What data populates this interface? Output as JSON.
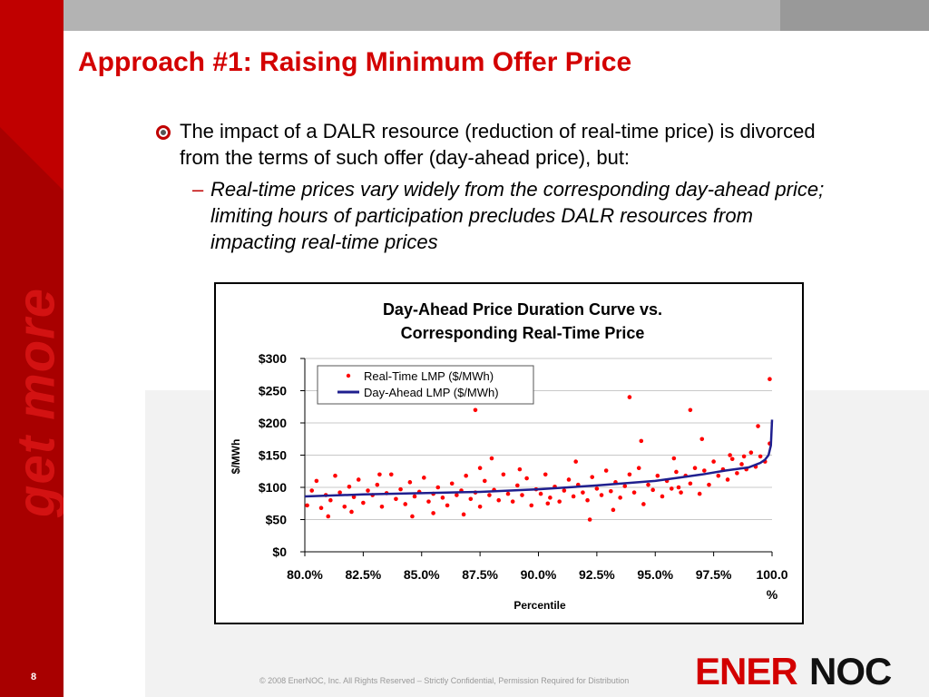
{
  "slide": {
    "title": "Approach #1: Raising Minimum Offer Price",
    "bullet": "The impact of a DALR resource (reduction of real-time price) is divorced from the terms of such offer (day-ahead price), but:",
    "sub_dash": "–",
    "sub_bullet": "Real-time prices vary widely from the corresponding day-ahead price; limiting hours of participation precludes DALR resources from impacting real-time prices",
    "page_number": "8",
    "footer": "© 2008 EnerNOC, Inc. All Rights Reserved – Strictly Confidential, Permission Required for Distribution",
    "brand_tagline": "get more",
    "logo": {
      "part1": "ENER",
      "part2": "NOC"
    }
  },
  "colors": {
    "accent_red": "#c00000",
    "title_red": "#d30000",
    "day_ahead_line": "#1f1f8f",
    "real_time_points": "#ff0000"
  },
  "chart_data": {
    "type": "scatter",
    "title_lines": [
      "Day-Ahead Price Duration Curve vs.",
      "Corresponding Real-Time Price"
    ],
    "xlabel": "Percentile",
    "ylabel": "$/MWh",
    "xlim": [
      80,
      100
    ],
    "ylim": [
      0,
      300
    ],
    "x_ticks": [
      80,
      82.5,
      85,
      87.5,
      90,
      92.5,
      95,
      97.5,
      100
    ],
    "x_tick_labels": [
      "80.0%",
      "82.5%",
      "85.0%",
      "87.5%",
      "90.0%",
      "92.5%",
      "95.0%",
      "97.5%",
      "100.0%"
    ],
    "y_ticks": [
      0,
      50,
      100,
      150,
      200,
      250,
      300
    ],
    "y_tick_labels": [
      "$0",
      "$50",
      "$100",
      "$150",
      "$200",
      "$250",
      "$300"
    ],
    "grid": "horizontal",
    "legend_position": "top-left",
    "series": [
      {
        "name": "Real-Time LMP ($/MWh)",
        "style": "points",
        "x": [
          80.1,
          80.3,
          80.5,
          80.7,
          80.9,
          81.1,
          81.3,
          81.5,
          81.7,
          81.9,
          82.1,
          82.3,
          82.5,
          82.7,
          82.9,
          83.1,
          83.3,
          83.5,
          83.7,
          83.9,
          84.1,
          84.3,
          84.5,
          84.7,
          84.9,
          85.1,
          85.3,
          85.5,
          85.7,
          85.9,
          86.1,
          86.3,
          86.5,
          86.7,
          86.9,
          87.1,
          87.3,
          87.5,
          87.7,
          87.9,
          88.1,
          88.3,
          88.5,
          88.7,
          88.9,
          89.1,
          89.3,
          89.5,
          89.7,
          89.9,
          90.1,
          90.3,
          90.5,
          90.7,
          90.9,
          91.1,
          91.3,
          91.5,
          91.7,
          91.9,
          92.1,
          92.3,
          92.5,
          92.7,
          92.9,
          93.1,
          93.3,
          93.5,
          93.7,
          93.9,
          94.1,
          94.3,
          94.5,
          94.7,
          94.9,
          95.1,
          95.3,
          95.5,
          95.7,
          95.9,
          96.1,
          96.3,
          96.5,
          96.7,
          96.9,
          97.1,
          97.3,
          97.5,
          97.7,
          97.9,
          98.1,
          98.3,
          98.5,
          98.7,
          98.9,
          99.1,
          99.3,
          99.5,
          99.7,
          99.9,
          87.3,
          88.0,
          93.9,
          94.4,
          96.5,
          99.9,
          87.5,
          85.5,
          92.2,
          81.0,
          83.2,
          86.8,
          90.4,
          95.8,
          97.0,
          98.2,
          99.4,
          82.0,
          84.6,
          89.2,
          91.6,
          93.2,
          96.0,
          98.8
        ],
        "y": [
          72,
          95,
          110,
          68,
          88,
          80,
          118,
          92,
          70,
          101,
          85,
          112,
          76,
          95,
          88,
          104,
          70,
          91,
          120,
          82,
          97,
          74,
          108,
          86,
          93,
          115,
          78,
          90,
          100,
          84,
          72,
          106,
          88,
          95,
          118,
          82,
          92,
          70,
          110,
          88,
          96,
          80,
          120,
          90,
          78,
          103,
          88,
          114,
          72,
          97,
          90,
          120,
          84,
          101,
          78,
          95,
          112,
          86,
          104,
          92,
          80,
          116,
          98,
          88,
          126,
          94,
          108,
          84,
          102,
          120,
          92,
          130,
          74,
          104,
          96,
          118,
          86,
          110,
          98,
          124,
          92,
          118,
          106,
          130,
          90,
          126,
          104,
          140,
          118,
          128,
          112,
          144,
          122,
          136,
          128,
          154,
          132,
          148,
          140,
          168,
          220,
          145,
          240,
          172,
          220,
          268,
          130,
          60,
          50,
          55,
          120,
          58,
          75,
          145,
          175,
          150,
          195,
          62,
          55,
          128,
          140,
          65,
          100,
          148
        ],
        "color": "#ff0000"
      },
      {
        "name": "Day-Ahead LMP ($/MWh)",
        "style": "line",
        "x": [
          80,
          82.5,
          85,
          87.5,
          90,
          92.5,
          95,
          96,
          97,
          98,
          99,
          99.5,
          99.7,
          99.85,
          99.95,
          100
        ],
        "y": [
          86,
          89,
          91,
          93,
          97,
          103,
          110,
          115,
          120,
          126,
          131,
          138,
          143,
          150,
          165,
          205
        ],
        "color": "#1f1f8f"
      }
    ]
  }
}
